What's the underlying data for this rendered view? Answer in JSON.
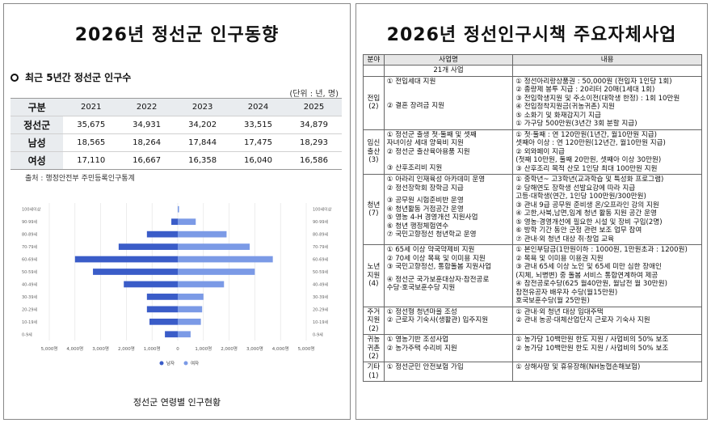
{
  "left": {
    "title": "2026년 정선군 인구동향",
    "section": "최근 5년간 정선군 인구수",
    "unit": "(단위 : 년, 명)",
    "table": {
      "header": [
        "구분",
        "2021",
        "2022",
        "2023",
        "2024",
        "2025"
      ],
      "rows": [
        {
          "label": "정선군",
          "values": [
            "35,675",
            "34,931",
            "34,202",
            "33,515",
            "34,879"
          ]
        },
        {
          "label": "남성",
          "values": [
            "18,565",
            "18,264",
            "17,844",
            "17,475",
            "18,293"
          ]
        },
        {
          "label": "여성",
          "values": [
            "17,110",
            "16,667",
            "16,358",
            "16,040",
            "16,586"
          ]
        }
      ]
    },
    "source": "출처 : 행정안전부 주민등록인구통계",
    "chart_caption": "정선군 연령별 인구현황"
  },
  "chart_data": {
    "type": "bar",
    "orientation": "horizontal-pyramid",
    "categories": [
      "0-9세",
      "10-19세",
      "20-29세",
      "30-39세",
      "40-49세",
      "50-59세",
      "60-69세",
      "70-79세",
      "80-89세",
      "90-99세",
      "100세이상"
    ],
    "series": [
      {
        "name": "남자",
        "color": "#3a5cc8",
        "values": [
          500,
          1100,
          1200,
          1200,
          2100,
          3300,
          4000,
          2300,
          1200,
          250,
          0
        ]
      },
      {
        "name": "여자",
        "color": "#7b9ae6",
        "values": [
          500,
          900,
          950,
          1000,
          1800,
          3000,
          3700,
          2800,
          1900,
          700,
          50
        ]
      }
    ],
    "x_ticks": [
      "5,000명",
      "4,000명",
      "3,000명",
      "2,000명",
      "1,000명",
      "0",
      "1,000명",
      "2,000명",
      "3,000명",
      "4,000명",
      "5,000명"
    ],
    "xlim": [
      -5000,
      5000
    ],
    "legend": "bottom-center",
    "grid": true
  },
  "right": {
    "title": "2026년 정선인구시책 주요자체사업",
    "headers": [
      "분야",
      "사업명",
      "내용"
    ],
    "total": "21개 사업",
    "sections": [
      {
        "category": [
          "전입",
          "(2)"
        ],
        "names": [
          "① 전입세대 지원",
          "",
          "",
          "",
          "",
          "② 결혼 장려금 지원"
        ],
        "details": [
          "① 정선아리랑상품권 : 50,000원 (전입자 1인당 1회)",
          "② 종량제 봉투 지급 : 20리터 20매(1세대 1회)",
          "③ 전입학생지원 및 주소이전(대학생 한정) : 1회 10만원",
          "④ 전입정착지원금(귀농귀촌) 지원",
          "⑤ 소화기 및 화재감지기 지급",
          "① 가구당 500만원(3년간 3회 분할 지급)"
        ]
      },
      {
        "category": [
          "임신",
          "출산",
          "(3)"
        ],
        "names": [
          "① 정선군 출생 첫·둘째 및 셋째",
          "   자녀이상 세대 양육비 지원",
          "② 정선군 출산육아용품 지원",
          "",
          "",
          "③ 산후조리비 지원"
        ],
        "details": [
          "① 첫·둘째 : 연 120만원(1년간, 월10만원 지급)",
          "   셋째아 이상 : 연 120만원(12년간, 월10만원 지급)",
          "② 외와페이 지급",
          "   (첫째 10만원, 둘째 20만원, 셋째아 이상 30만원)",
          "③ 산후조리 목적 산모 1인당 최대 100만원 지원"
        ]
      },
      {
        "category": [
          "청년",
          "(7)"
        ],
        "names": [
          "① 아라리 인재육성 아카데미 운영",
          "② 정선장학회 장학금 지급",
          "",
          "③ 공무원 시험준비반 운영",
          "④ 청년활동 거점공간 운영",
          "⑤ 영농 4-H 경영개선 지원사업",
          "⑥ 청년 행정체험연수",
          "⑦ 국민고향정선 청년학교 운영"
        ],
        "details": [
          "① 중학년~ 고3학년(교과학습 및 특성화 프로그램)",
          "② 당해연도 장학생 선발요강에 따라 지급",
          "   고등·대학생(연간, 1인당 100만원/300만원)",
          "③ 관내 9급 공무원 준비생 온/오프라인 강의 지원",
          "④ 고한,사북,남면,임계 청년 활동 지원 공간 운영",
          "⑤ 영농·경영개선에 필요한 시설 및 장비 구입(2명)",
          "⑥ 방학 기간 동안 군정 관련 보조 업무 참여",
          "⑦ 관내·외 청년 대상 취·창업 교육"
        ]
      },
      {
        "category": [
          "노년",
          "지원",
          "(4)"
        ],
        "names": [
          "① 65세 이상 약국약제비 지원",
          "② 70세 이상 목욕 및 이미용 지원",
          "③ 국민고향정선, 통합돌봄 지원사업",
          "",
          "④ 정선군 국가보훈대상자·참전공로",
          "   수당·호국보훈수당 지원"
        ],
        "details": [
          "① 본인부담금(1만원이하 : 1000원, 1만원초과 : 1200원)",
          "② 목욕 및 이미용 이용권 지원",
          "③ 관내 65세 이상 노인 및 65세 미만 심한 장애인",
          "   (지체, 뇌병변) 중 돌봄 서비스 통합연계하여 제공",
          "④ 참전공로수당(625 월40만원, 월남전 월 30만원)",
          "   참전유공자 배우자 수당(월15만원)",
          "   호국보훈수당(월 25만원)"
        ]
      },
      {
        "category": [
          "주거",
          "지원",
          "(2)"
        ],
        "names": [
          "① 정선형 청년마을 조성",
          "② 근로자 기숙사(생활관) 입주지원"
        ],
        "details": [
          "① 관내·외 청년 대상 임대주택",
          "② 관내 농공·대체산업단지 근로자 기숙사 지원"
        ]
      },
      {
        "category": [
          "귀농",
          "귀촌",
          "(2)"
        ],
        "names": [
          "① 영농기반 조성사업",
          "② 농가주택 수리비 지원"
        ],
        "details": [
          "① 농가당 10백만원 한도 지원 / 사업비의 50% 보조",
          "② 농가당 10백만원 한도 지원 / 사업비의 50% 보조"
        ]
      },
      {
        "category": [
          "기타",
          "(1)"
        ],
        "names": [
          "① 정선군민 안전보험 가입"
        ],
        "details": [
          "① 상해사망 및 휴유장해(NH농협손해보험)"
        ]
      }
    ]
  }
}
